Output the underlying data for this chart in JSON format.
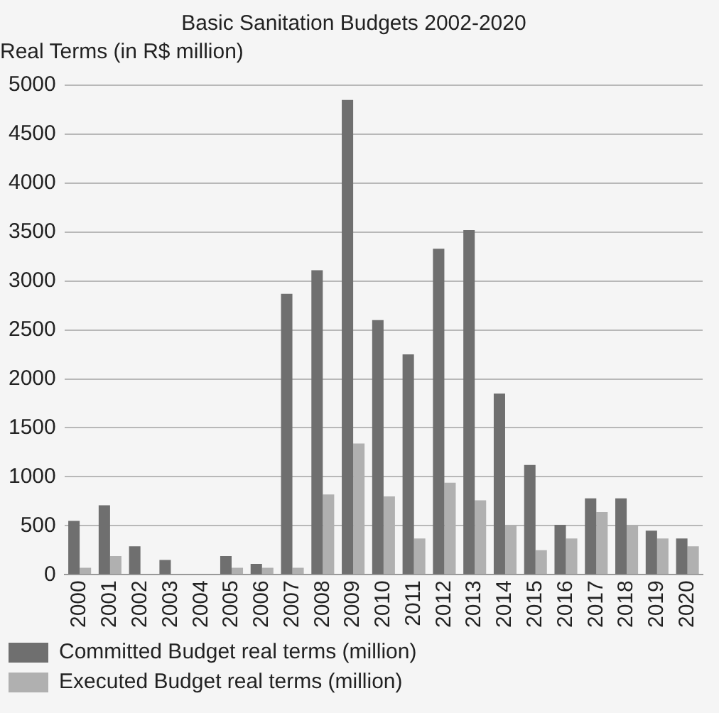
{
  "chart_data": {
    "type": "bar",
    "title": "Basic Sanitation Budgets 2002-2020",
    "subtitle": "Real Terms (in R$ million)",
    "categories": [
      "2000",
      "2001",
      "2002",
      "2003",
      "2004",
      "2005",
      "2006",
      "2007",
      "2008",
      "2009",
      "2010",
      "2011",
      "2012",
      "2013",
      "2014",
      "2015",
      "2016",
      "2017",
      "2018",
      "2019",
      "2020"
    ],
    "series": [
      {
        "name": "Committed Budget real terms (million)",
        "color": "#6f6f6f",
        "values": [
          550,
          710,
          290,
          150,
          0,
          190,
          110,
          2870,
          3110,
          4850,
          2600,
          2250,
          3330,
          3520,
          1850,
          1120,
          510,
          780,
          780,
          450,
          370
        ]
      },
      {
        "name": "Executed Budget real terms (million)",
        "color": "#b0b0b0",
        "values": [
          70,
          190,
          0,
          0,
          0,
          70,
          70,
          70,
          820,
          1340,
          800,
          370,
          940,
          760,
          510,
          250,
          370,
          640,
          510,
          370,
          290
        ]
      }
    ],
    "ylim": [
      0,
      5000
    ],
    "yticks": [
      0,
      500,
      1000,
      1500,
      2000,
      2500,
      3000,
      3500,
      4000,
      4500,
      5000
    ],
    "grid": "y",
    "legend": "bottom left"
  }
}
